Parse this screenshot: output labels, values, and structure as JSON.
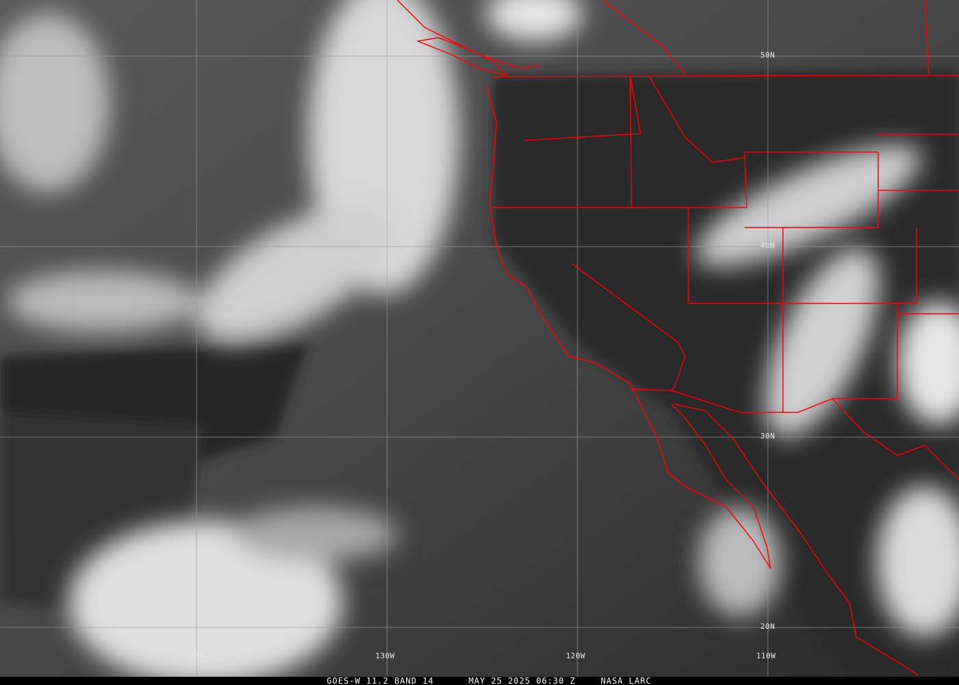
{
  "caption": {
    "satellite_band": "GOES-W 11.2 BAND 14",
    "datetime": "MAY 25 2025 06:30 Z",
    "credit": "NASA LARC"
  },
  "grid": {
    "longitudes": [
      "140W",
      "130W",
      "120W",
      "110W"
    ],
    "latitudes": [
      "50N",
      "40N",
      "30N",
      "20N"
    ]
  },
  "colors": {
    "borders": "#ff0000",
    "grid": "#9a9a9a"
  }
}
